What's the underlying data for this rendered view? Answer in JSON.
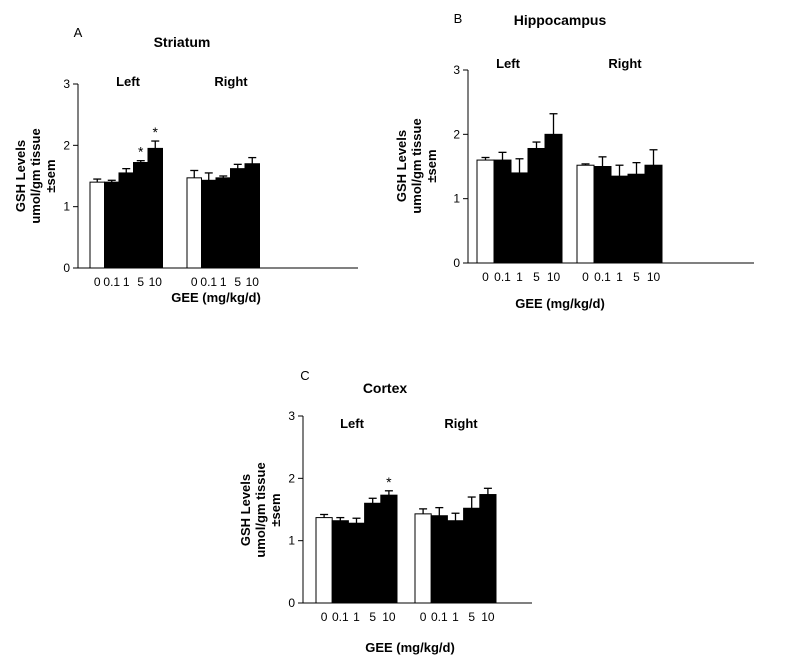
{
  "chart_data": [
    {
      "type": "bar",
      "panel": "A",
      "title": "Striatum",
      "groups": [
        "Left",
        "Right"
      ],
      "categories": [
        "0",
        "0.1",
        "1",
        "5",
        "10"
      ],
      "xlabel": "GEE (mg/kg/d)",
      "ylabel": [
        "GSH Levels",
        "umol/gm tissue",
        "±sem"
      ],
      "ylim": [
        0,
        3
      ],
      "yticks": [
        "0",
        "1",
        "2",
        "3"
      ],
      "series": [
        {
          "name": "Left",
          "values": [
            1.4,
            1.4,
            1.55,
            1.72,
            1.95
          ],
          "errors": [
            0.05,
            0.03,
            0.07,
            0.03,
            0.12
          ],
          "annotations": [
            "",
            "",
            "",
            "*",
            "*"
          ]
        },
        {
          "name": "Right",
          "values": [
            1.47,
            1.43,
            1.47,
            1.62,
            1.7
          ],
          "errors": [
            0.12,
            0.12,
            0.03,
            0.07,
            0.1
          ],
          "annotations": [
            "",
            "",
            "",
            "",
            ""
          ]
        }
      ],
      "colors": {
        "control": "#ffffff",
        "treated": "#000000"
      }
    },
    {
      "type": "bar",
      "panel": "B",
      "title": "Hippocampus",
      "groups": [
        "Left",
        "Right"
      ],
      "categories": [
        "0",
        "0.1",
        "1",
        "5",
        "10"
      ],
      "xlabel": "GEE (mg/kg/d)",
      "ylabel": [
        "GSH Levels",
        "umol/gm tissue",
        "±sem"
      ],
      "ylim": [
        0,
        3
      ],
      "yticks": [
        "0",
        "1",
        "2",
        "3"
      ],
      "series": [
        {
          "name": "Left",
          "values": [
            1.6,
            1.6,
            1.4,
            1.78,
            2.0
          ],
          "errors": [
            0.04,
            0.12,
            0.22,
            0.1,
            0.32
          ],
          "annotations": [
            "",
            "",
            "",
            "",
            ""
          ]
        },
        {
          "name": "Right",
          "values": [
            1.52,
            1.5,
            1.35,
            1.38,
            1.52
          ],
          "errors": [
            0.02,
            0.15,
            0.17,
            0.18,
            0.24
          ],
          "annotations": [
            "",
            "",
            "",
            "",
            ""
          ]
        }
      ],
      "colors": {
        "control": "#ffffff",
        "treated": "#000000"
      }
    },
    {
      "type": "bar",
      "panel": "C",
      "title": "Cortex",
      "groups": [
        "Left",
        "Right"
      ],
      "categories": [
        "0",
        "0.1",
        "1",
        "5",
        "10"
      ],
      "xlabel": "GEE (mg/kg/d)",
      "ylabel": [
        "GSH Levels",
        "umol/gm tissue",
        "±sem"
      ],
      "ylim": [
        0,
        3
      ],
      "yticks": [
        "0",
        "1",
        "2",
        "3"
      ],
      "series": [
        {
          "name": "Left",
          "values": [
            1.37,
            1.32,
            1.28,
            1.6,
            1.73
          ],
          "errors": [
            0.05,
            0.05,
            0.08,
            0.08,
            0.07
          ],
          "annotations": [
            "",
            "",
            "",
            "",
            "*"
          ]
        },
        {
          "name": "Right",
          "values": [
            1.43,
            1.4,
            1.32,
            1.52,
            1.74
          ],
          "errors": [
            0.08,
            0.13,
            0.12,
            0.18,
            0.1
          ],
          "annotations": [
            "",
            "",
            "",
            "",
            ""
          ]
        }
      ],
      "colors": {
        "control": "#ffffff",
        "treated": "#000000"
      }
    }
  ]
}
